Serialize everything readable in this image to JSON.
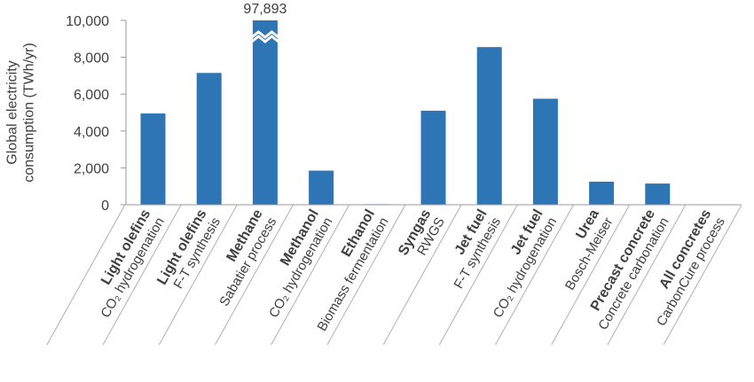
{
  "chart_data": {
    "type": "bar",
    "ylabel": "Global electricity consumption (TWh/yr)",
    "ylim": [
      0,
      10000
    ],
    "yticks": [
      0,
      2000,
      4000,
      6000,
      8000,
      10000
    ],
    "ytick_labels": [
      "0",
      "2,000",
      "4,000",
      "6,000",
      "8,000",
      "10,000"
    ],
    "axis_break_on": "Methane",
    "categories": [
      {
        "name": "Light olefins",
        "process": "CO₂ hydrogenation",
        "value": 4950
      },
      {
        "name": "Light olefins",
        "process": "F-T synthesis",
        "value": 7150
      },
      {
        "name": "Methane",
        "process": "Sabatier process",
        "value": 97893,
        "value_label": "97,893"
      },
      {
        "name": "Methanol",
        "process": "CO₂ hydrogenation",
        "value": 1850
      },
      {
        "name": "Ethanol",
        "process": "Biomass fermentation",
        "value": 30
      },
      {
        "name": "Syngas",
        "process": "RWGS",
        "value": 5100
      },
      {
        "name": "Jet fuel",
        "process": "F-T synthesis",
        "value": 8550
      },
      {
        "name": "Jet fuel",
        "process": "CO₂ hydrogenation",
        "value": 5750
      },
      {
        "name": "Urea",
        "process": "Bosch-Meiser",
        "value": 1250
      },
      {
        "name": "Precast concrete",
        "process": "Concrete carbonation",
        "value": 1150
      },
      {
        "name": "All concretes",
        "process": "CarbonCure process",
        "value": 0
      }
    ],
    "colors": {
      "bar": "#2e75b6"
    }
  }
}
